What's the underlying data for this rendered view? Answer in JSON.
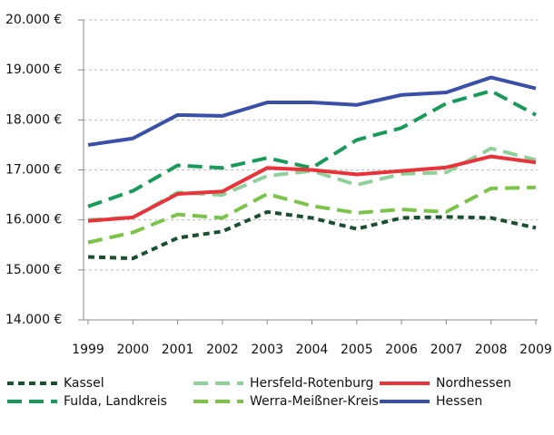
{
  "chart_data": {
    "type": "line",
    "x": [
      1999,
      2000,
      2001,
      2002,
      2003,
      2004,
      2005,
      2006,
      2007,
      2008,
      2009
    ],
    "xlim": [
      1999,
      2009
    ],
    "xticks": [
      1999,
      2000,
      2001,
      2002,
      2003,
      2004,
      2005,
      2006,
      2007,
      2008,
      2009
    ],
    "ylim": [
      14000,
      20000
    ],
    "yticks": [
      {
        "value": 14000,
        "label": "14.000 €"
      },
      {
        "value": 15000,
        "label": "15.000 €"
      },
      {
        "value": 16000,
        "label": "16.000 €"
      },
      {
        "value": 17000,
        "label": "17.000 €"
      },
      {
        "value": 18000,
        "label": "18.000 €"
      },
      {
        "value": 19000,
        "label": "19.000 €"
      },
      {
        "value": 20000,
        "label": "20.000 €"
      }
    ],
    "grid": true,
    "legend": "bottom",
    "series": [
      {
        "name": "Kassel",
        "color": "#1b4f2f",
        "style": "dotted",
        "values": [
          15260,
          15230,
          15640,
          15770,
          16160,
          16040,
          15820,
          16040,
          16060,
          16040,
          15840
        ]
      },
      {
        "name": "Fulda, Landkreis",
        "color": "#1a9a5a",
        "style": "dashed",
        "values": [
          16270,
          16580,
          17090,
          17040,
          17240,
          17040,
          17600,
          17840,
          18330,
          18580,
          18100
        ]
      },
      {
        "name": "Hersfeld-Rotenburg",
        "color": "#8fd09a",
        "style": "dashed",
        "values": [
          16000,
          16050,
          16550,
          16500,
          16880,
          16980,
          16700,
          16920,
          16950,
          17430,
          17200
        ]
      },
      {
        "name": "Werra-Meißner-Kreis",
        "color": "#7cc34a",
        "style": "dashed",
        "values": [
          15550,
          15750,
          16110,
          16040,
          16520,
          16280,
          16140,
          16210,
          16160,
          16630,
          16650
        ]
      },
      {
        "name": "Nordhessen",
        "color": "#e8333a",
        "style": "solid",
        "values": [
          15980,
          16050,
          16520,
          16570,
          17040,
          17000,
          16910,
          16980,
          17050,
          17270,
          17150
        ]
      },
      {
        "name": "Hessen",
        "color": "#3a4fa8",
        "style": "solid",
        "values": [
          17500,
          17630,
          18100,
          18080,
          18350,
          18350,
          18300,
          18500,
          18550,
          18850,
          18630
        ]
      }
    ]
  }
}
